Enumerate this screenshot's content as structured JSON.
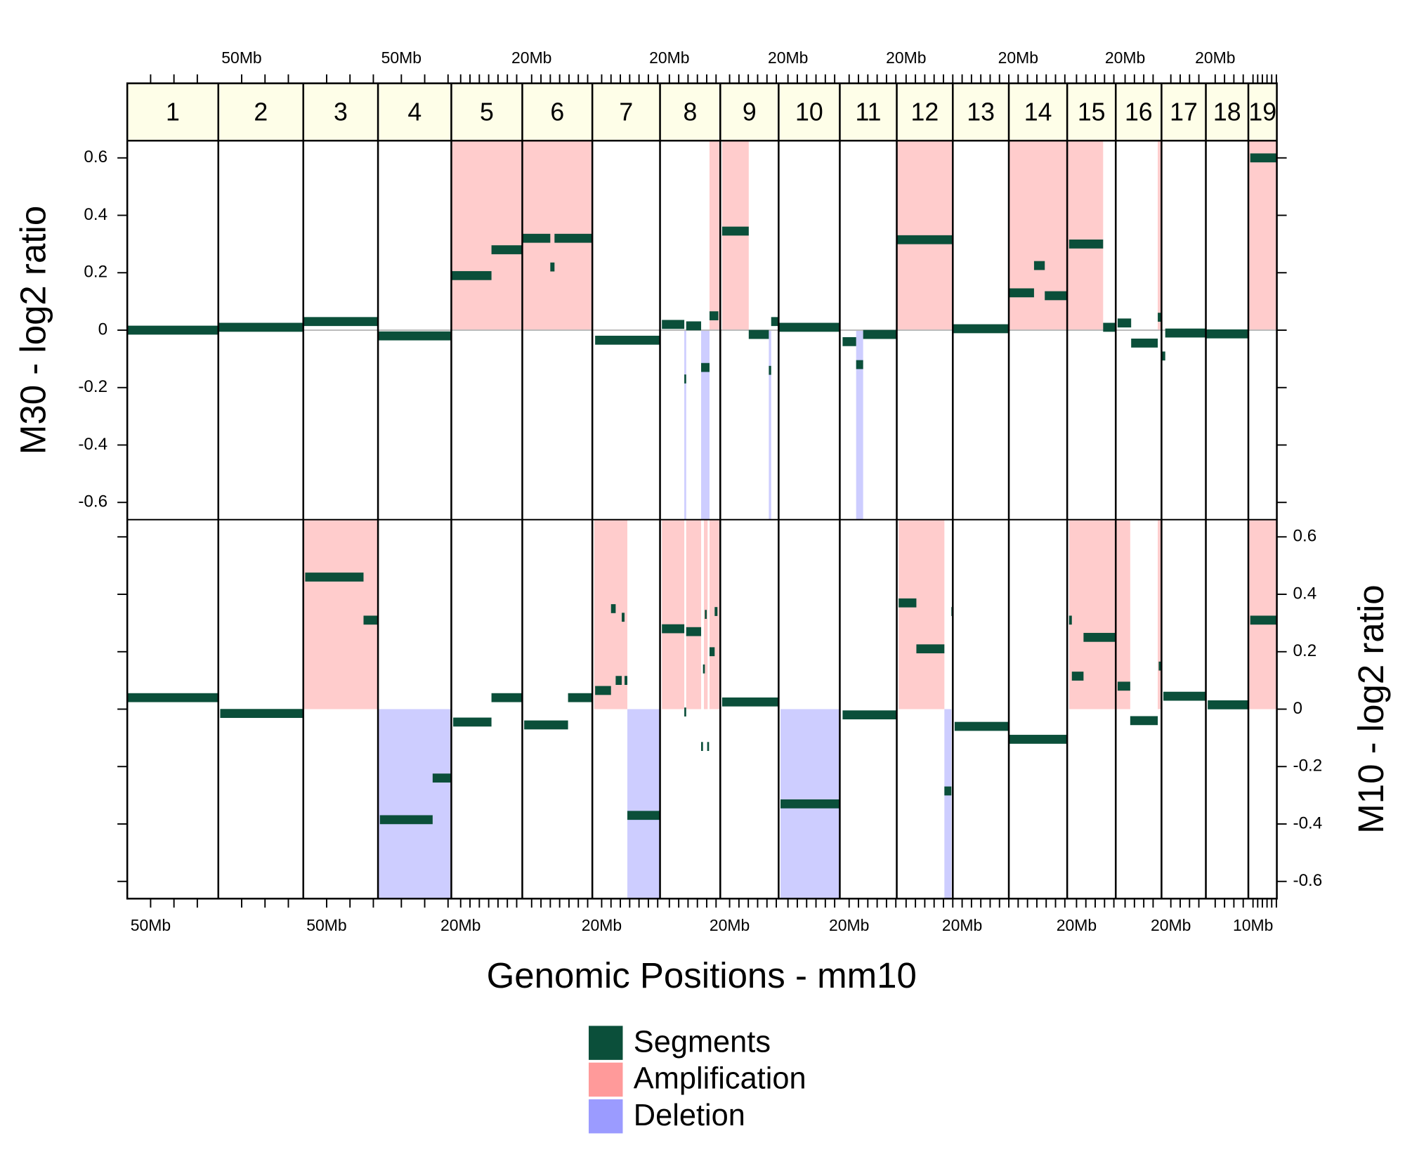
{
  "chart_data": {
    "type": "segments",
    "x_label": "Genomic Positions - mm10",
    "categories": [
      "1",
      "2",
      "3",
      "4",
      "5",
      "6",
      "7",
      "8",
      "9",
      "10",
      "11",
      "12",
      "13",
      "14",
      "15",
      "16",
      "17",
      "18",
      "19"
    ],
    "xlims": [
      [
        0,
        195
      ],
      [
        0,
        182
      ],
      [
        0,
        160
      ],
      [
        0,
        157
      ],
      [
        0,
        152
      ],
      [
        0,
        150
      ],
      [
        0,
        145
      ],
      [
        0,
        129
      ],
      [
        0,
        125
      ],
      [
        0,
        131
      ],
      [
        0,
        122
      ],
      [
        0,
        120
      ],
      [
        0,
        120
      ],
      [
        0,
        125
      ],
      [
        0,
        104
      ],
      [
        0,
        98
      ],
      [
        0,
        95
      ],
      [
        0,
        91
      ],
      [
        0,
        61
      ]
    ],
    "xticks": [
      [
        {
          "value": 50,
          "label": "50Mb"
        }
      ],
      [
        {
          "value": 50,
          "label": "50Mb"
        }
      ],
      [
        {
          "value": 50,
          "label": "50Mb"
        }
      ],
      [
        {
          "value": 50,
          "label": "50Mb"
        }
      ],
      [
        {
          "value": 20,
          "label": "20Mb"
        }
      ],
      [
        {
          "value": 20,
          "label": "20Mb"
        }
      ],
      [
        {
          "value": 20,
          "label": "20Mb"
        }
      ],
      [
        {
          "value": 20,
          "label": "20Mb"
        }
      ],
      [
        {
          "value": 20,
          "label": "20Mb"
        }
      ],
      [
        {
          "value": 20,
          "label": "20Mb"
        }
      ],
      [
        {
          "value": 20,
          "label": "20Mb"
        }
      ],
      [
        {
          "value": 20,
          "label": "20Mb"
        }
      ],
      [
        {
          "value": 20,
          "label": "20Mb"
        }
      ],
      [
        {
          "value": 20,
          "label": "20Mb"
        }
      ],
      [
        {
          "value": 20,
          "label": "20Mb"
        }
      ],
      [
        {
          "value": 20,
          "label": "20Mb"
        }
      ],
      [
        {
          "value": 20,
          "label": "20Mb"
        }
      ],
      [
        {
          "value": 20,
          "label": "20Mb"
        }
      ],
      [
        {
          "value": 10,
          "label": "10Mb"
        }
      ]
    ],
    "minor_xticks": [
      [
        100,
        150
      ],
      [
        100,
        150
      ],
      [
        100,
        150
      ],
      [
        100,
        150
      ],
      [
        40,
        60,
        80,
        100,
        120,
        140
      ],
      [
        40,
        60,
        80,
        100,
        120,
        140
      ],
      [
        40,
        60,
        80,
        100,
        120,
        140
      ],
      [
        40,
        60,
        80,
        100,
        120
      ],
      [
        40,
        60,
        80,
        100,
        120
      ],
      [
        40,
        60,
        80,
        100,
        120
      ],
      [
        40,
        60,
        80,
        100,
        120
      ],
      [
        40,
        60,
        80,
        100,
        120
      ],
      [
        40,
        60,
        80,
        100,
        120
      ],
      [
        40,
        60,
        80,
        100,
        120
      ],
      [
        40,
        60,
        80,
        100
      ],
      [
        40,
        60,
        80
      ],
      [
        40,
        60,
        80
      ],
      [
        40,
        60,
        80
      ],
      [
        20,
        30,
        40,
        50,
        60
      ]
    ],
    "legend": [
      {
        "name": "Segments",
        "color": "#0b4f3a"
      },
      {
        "name": "Amplification",
        "color": "#ff9a9a"
      },
      {
        "name": "Deletion",
        "color": "#9b9bff"
      }
    ],
    "panels": [
      {
        "y_label": "M30 - log2 ratio",
        "ylim": [
          -0.66,
          0.66
        ],
        "yticks": [
          0.6,
          0.4,
          0.2,
          0,
          -0.2,
          -0.4,
          -0.6
        ],
        "zero_line": true,
        "chromosomes": [
          {
            "segments": [
              [
                0,
                195,
                0.0
              ]
            ],
            "amplifications": [],
            "deletions": []
          },
          {
            "segments": [
              [
                0,
                182,
                0.01
              ]
            ],
            "amplifications": [],
            "deletions": []
          },
          {
            "segments": [
              [
                0,
                160,
                0.03
              ]
            ],
            "amplifications": [],
            "deletions": []
          },
          {
            "segments": [
              [
                0,
                157,
                -0.02
              ]
            ],
            "amplifications": [],
            "deletions": []
          },
          {
            "segments": [
              [
                0,
                86,
                0.19
              ],
              [
                86,
                152,
                0.28
              ]
            ],
            "amplifications": [
              [
                0,
                152
              ]
            ],
            "deletions": []
          },
          {
            "segments": [
              [
                0,
                60,
                0.32
              ],
              [
                60,
                69,
                0.22
              ],
              [
                69,
                150,
                0.32
              ]
            ],
            "amplifications": [
              [
                0,
                150
              ]
            ],
            "deletions": []
          },
          {
            "segments": [
              [
                6,
                145,
                -0.035
              ]
            ],
            "amplifications": [],
            "deletions": []
          },
          {
            "segments": [
              [
                4,
                52,
                0.02
              ],
              [
                52,
                56,
                -0.17
              ],
              [
                56,
                88,
                0.015
              ],
              [
                88,
                106,
                -0.13
              ],
              [
                106,
                125,
                0.05
              ]
            ],
            "amplifications": [
              [
                106,
                129
              ]
            ],
            "deletions": [
              [
                52,
                56
              ],
              [
                88,
                106
              ]
            ]
          },
          {
            "segments": [
              [
                4,
                61,
                0.345
              ],
              [
                61,
                104,
                -0.015
              ],
              [
                104,
                109,
                -0.14
              ],
              [
                109,
                125,
                0.03
              ]
            ],
            "amplifications": [
              [
                4,
                61
              ]
            ],
            "deletions": [
              [
                104,
                109
              ]
            ]
          },
          {
            "segments": [
              [
                0,
                131,
                0.01
              ]
            ],
            "amplifications": [],
            "deletions": []
          },
          {
            "segments": [
              [
                6,
                35,
                -0.04
              ],
              [
                35,
                50,
                -0.12
              ],
              [
                50,
                122,
                -0.015
              ]
            ],
            "amplifications": [],
            "deletions": [
              [
                35,
                50
              ]
            ]
          },
          {
            "segments": [
              [
                0,
                120,
                0.315
              ]
            ],
            "amplifications": [
              [
                0,
                120
              ]
            ],
            "deletions": []
          },
          {
            "segments": [
              [
                0,
                120,
                0.005
              ]
            ],
            "amplifications": [],
            "deletions": []
          },
          {
            "segments": [
              [
                0,
                54,
                0.13
              ],
              [
                54,
                77,
                0.225
              ],
              [
                77,
                125,
                0.12
              ]
            ],
            "amplifications": [
              [
                0,
                125
              ]
            ],
            "deletions": []
          },
          {
            "segments": [
              [
                4,
                77,
                0.3
              ],
              [
                77,
                104,
                0.01
              ]
            ],
            "amplifications": [
              [
                0,
                77
              ]
            ],
            "deletions": []
          },
          {
            "segments": [
              [
                4,
                33,
                0.025
              ],
              [
                33,
                90,
                -0.045
              ],
              [
                90,
                98,
                0.045
              ]
            ],
            "amplifications": [
              [
                90,
                98
              ]
            ],
            "deletions": []
          },
          {
            "segments": [
              [
                0,
                8,
                -0.09
              ],
              [
                8,
                95,
                -0.01
              ]
            ],
            "amplifications": [],
            "deletions": []
          },
          {
            "segments": [
              [
                0,
                91,
                -0.013
              ]
            ],
            "amplifications": [],
            "deletions": []
          },
          {
            "segments": [
              [
                4,
                61,
                0.6
              ]
            ],
            "amplifications": [
              [
                0,
                61
              ]
            ],
            "deletions": []
          }
        ]
      },
      {
        "y_label": "M10 - log2 ratio",
        "ylim": [
          -0.66,
          0.66
        ],
        "yticks": [
          0.6,
          0.4,
          0.2,
          0,
          -0.2,
          -0.4,
          -0.6
        ],
        "zero_line": false,
        "chromosomes": [
          {
            "segments": [
              [
                0,
                195,
                0.04
              ]
            ],
            "amplifications": [],
            "deletions": []
          },
          {
            "segments": [
              [
                4,
                182,
                -0.015
              ]
            ],
            "amplifications": [],
            "deletions": []
          },
          {
            "segments": [
              [
                4,
                129,
                0.46
              ],
              [
                129,
                160,
                0.31
              ]
            ],
            "amplifications": [
              [
                0,
                160
              ]
            ],
            "deletions": []
          },
          {
            "segments": [
              [
                4,
                117,
                -0.385
              ],
              [
                117,
                157,
                -0.24
              ]
            ],
            "amplifications": [],
            "deletions": [
              [
                0,
                157
              ]
            ]
          },
          {
            "segments": [
              [
                4,
                86,
                -0.045
              ],
              [
                86,
                152,
                0.04
              ]
            ],
            "amplifications": [],
            "deletions": []
          },
          {
            "segments": [
              [
                4,
                98,
                -0.055
              ],
              [
                98,
                150,
                0.04
              ]
            ],
            "amplifications": [],
            "deletions": []
          },
          {
            "segments": [
              [
                6,
                40,
                0.065
              ],
              [
                40,
                50,
                0.35
              ],
              [
                50,
                63,
                0.1
              ],
              [
                63,
                69,
                0.32
              ],
              [
                69,
                75,
                0.1
              ],
              [
                75,
                145,
                -0.37
              ]
            ],
            "amplifications": [
              [
                4,
                75
              ]
            ],
            "deletions": [
              [
                75,
                145
              ]
            ]
          },
          {
            "segments": [
              [
                4,
                52,
                0.28
              ],
              [
                52,
                56,
                -0.01
              ],
              [
                56,
                88,
                0.27
              ],
              [
                88,
                92,
                -0.13
              ],
              [
                92,
                96,
                0.14
              ],
              [
                96,
                100,
                0.33
              ],
              [
                101,
                105,
                -0.13
              ],
              [
                106,
                117,
                0.2
              ],
              [
                117,
                123,
                0.34
              ]
            ],
            "amplifications": [
              [
                4,
                52
              ],
              [
                56,
                88
              ],
              [
                94,
                102
              ],
              [
                106,
                129
              ]
            ],
            "deletions": []
          },
          {
            "segments": [
              [
                4,
                125,
                0.025
              ]
            ],
            "amplifications": [],
            "deletions": []
          },
          {
            "segments": [
              [
                4,
                131,
                -0.33
              ]
            ],
            "amplifications": [],
            "deletions": [
              [
                4,
                131
              ]
            ]
          },
          {
            "segments": [
              [
                6,
                122,
                -0.02
              ]
            ],
            "amplifications": [],
            "deletions": []
          },
          {
            "segments": [
              [
                4,
                42,
                0.37
              ],
              [
                42,
                102,
                0.21
              ],
              [
                102,
                117,
                -0.285
              ],
              [
                117,
                120,
                0.34
              ]
            ],
            "amplifications": [
              [
                4,
                102
              ]
            ],
            "deletions": [
              [
                102,
                117
              ]
            ]
          },
          {
            "segments": [
              [
                4,
                120,
                -0.06
              ]
            ],
            "amplifications": [],
            "deletions": []
          },
          {
            "segments": [
              [
                0,
                125,
                -0.105
              ]
            ],
            "amplifications": [],
            "deletions": []
          },
          {
            "segments": [
              [
                4,
                10,
                0.31
              ],
              [
                10,
                35,
                0.115
              ],
              [
                35,
                104,
                0.25
              ]
            ],
            "amplifications": [
              [
                4,
                104
              ]
            ],
            "deletions": []
          },
          {
            "segments": [
              [
                4,
                31,
                0.08
              ],
              [
                31,
                90,
                -0.04
              ],
              [
                92,
                98,
                0.15
              ]
            ],
            "amplifications": [
              [
                0,
                31
              ],
              [
                90,
                98
              ]
            ],
            "deletions": []
          },
          {
            "segments": [
              [
                4,
                95,
                0.045
              ]
            ],
            "amplifications": [],
            "deletions": []
          },
          {
            "segments": [
              [
                4,
                91,
                0.015
              ]
            ],
            "amplifications": [],
            "deletions": []
          },
          {
            "segments": [
              [
                4,
                61,
                0.31
              ]
            ],
            "amplifications": [
              [
                0,
                61
              ]
            ],
            "deletions": []
          }
        ]
      }
    ]
  }
}
